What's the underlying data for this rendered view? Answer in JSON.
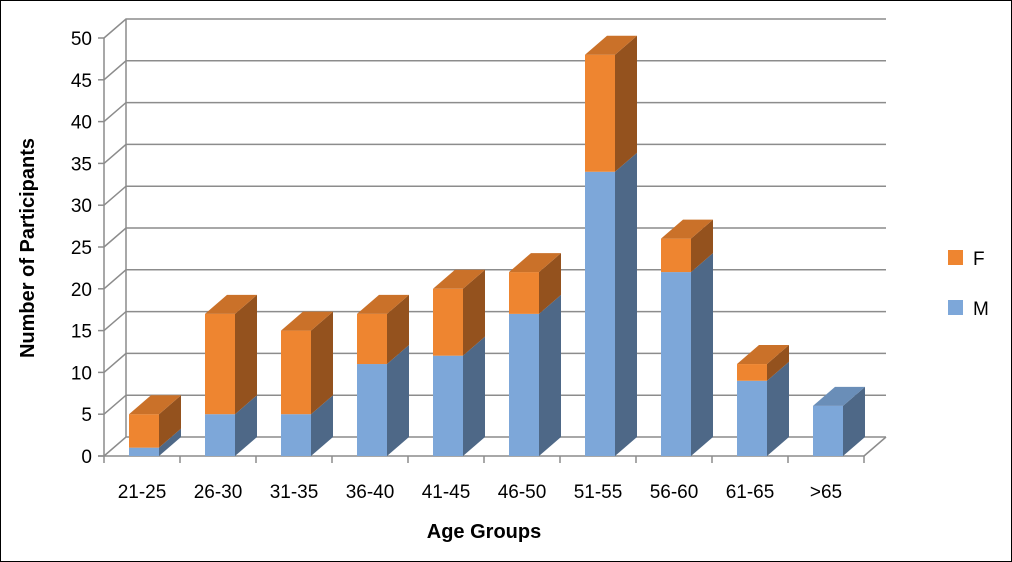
{
  "chart_data": {
    "type": "bar",
    "stacked": true,
    "three_d": true,
    "title": "",
    "xlabel": "Age Groups",
    "ylabel": "Number of Participants",
    "ylim": [
      0,
      50
    ],
    "yticks": [
      0,
      5,
      10,
      15,
      20,
      25,
      30,
      35,
      40,
      45,
      50
    ],
    "grid": true,
    "legend_position": "right",
    "categories": [
      "21-25",
      "26-30",
      "31-35",
      "36-40",
      "41-45",
      "46-50",
      "51-55",
      "56-60",
      "61-65",
      ">65"
    ],
    "series": [
      {
        "name": "M",
        "color": "#7da7d9",
        "values": [
          1,
          5,
          5,
          11,
          12,
          17,
          34,
          22,
          9,
          6
        ]
      },
      {
        "name": "F",
        "color": "#ee8530",
        "values": [
          4,
          12,
          10,
          6,
          8,
          5,
          14,
          4,
          2,
          0
        ]
      }
    ],
    "legend_order": [
      "F",
      "M"
    ]
  }
}
